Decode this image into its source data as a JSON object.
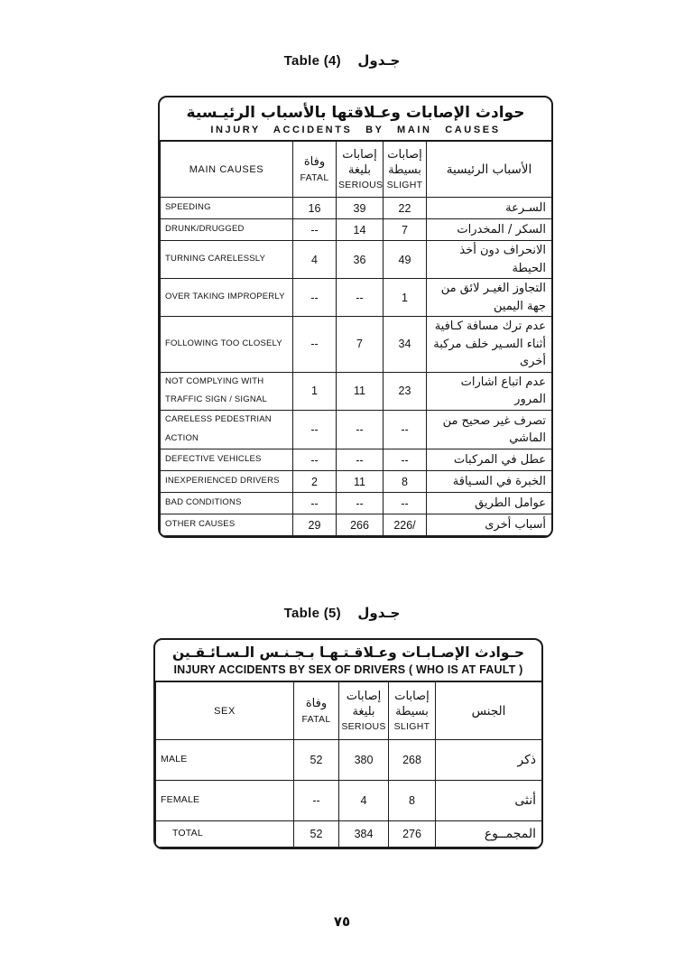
{
  "captions": {
    "table4_en": "Table (4)",
    "table4_ar": "جـدول",
    "table5_en": "Table (5)",
    "table5_ar": "جـدول"
  },
  "table4": {
    "title_ar": "حوادث الإصابات وعـلاقتها بالأسباب الرئيـسية",
    "title_en": "INJURY ACCIDENTS BY MAIN CAUSES",
    "columns": [
      {
        "en": "MAIN CAUSES"
      },
      {
        "ar": "وفاة",
        "en": "FATAL"
      },
      {
        "ar1": "إصابات",
        "ar2": "بليغة",
        "en": "SERIOUS"
      },
      {
        "ar1": "إصابات",
        "ar2": "بسيطة",
        "en": "SLIGHT"
      },
      {
        "ar": "الأسباب الرئيسية"
      }
    ],
    "rows": [
      {
        "cause_en": "SPEEDING",
        "fatal": "16",
        "serious": "39",
        "slight": "22",
        "cause_ar": "السـرعة"
      },
      {
        "cause_en": "DRUNK/DRUGGED",
        "fatal": "--",
        "serious": "14",
        "slight": "7",
        "cause_ar": "السكر / المخدرات"
      },
      {
        "cause_en": "TURNING CARELESSLY",
        "fatal": "4",
        "serious": "36",
        "slight": "49",
        "cause_ar": "الانحراف دون أخذ الحيطة"
      },
      {
        "cause_en": "OVER TAKING IMPROPERLY",
        "fatal": "--",
        "serious": "--",
        "slight": "1",
        "cause_ar": "التجاوز الغيـر لائق من جهة اليمين"
      },
      {
        "cause_en": "FOLLOWING TOO CLOSELY",
        "fatal": "--",
        "serious": "7",
        "slight": "34",
        "cause_ar": "عدم ترك مسافة كـافية أثناء السـير خلف مركبة أخرى"
      },
      {
        "cause_en": "NOT COMPLYING WITH TRAFFIC SIGN / SIGNAL",
        "fatal": "1",
        "serious": "11",
        "slight": "23",
        "cause_ar": "عدم اتباع اشارات المرور"
      },
      {
        "cause_en": "CARELESS PEDESTRIAN ACTION",
        "fatal": "--",
        "serious": "--",
        "slight": "--",
        "cause_ar": "تصرف غير صحيح من الماشي"
      },
      {
        "cause_en": "DEFECTIVE VEHICLES",
        "fatal": "--",
        "serious": "--",
        "slight": "--",
        "cause_ar": "عطل في المركبات"
      },
      {
        "cause_en": "INEXPERIENCED DRIVERS",
        "fatal": "2",
        "serious": "11",
        "slight": "8",
        "cause_ar": "الخبرة في السـياقة"
      },
      {
        "cause_en": "BAD CONDITIONS",
        "fatal": "--",
        "serious": "--",
        "slight": "--",
        "cause_ar": "عوامل الطريق"
      },
      {
        "cause_en": "OTHER CAUSES",
        "fatal": "29",
        "serious": "266",
        "slight": "226/",
        "cause_ar": "أسباب أخرى"
      }
    ]
  },
  "table5": {
    "title_ar": "حـوادث الإصـابـات وعـلاقـتـهـا بـجـنـس الـسـائـقـين",
    "title_en": "INJURY ACCIDENTS BY SEX OF DRIVERS ( WHO IS AT FAULT )",
    "columns": [
      {
        "en": "SEX"
      },
      {
        "ar": "وفاة",
        "en": "FATAL"
      },
      {
        "ar1": "إصابات",
        "ar2": "بليغة",
        "en": "SERIOUS"
      },
      {
        "ar1": "إصابات",
        "ar2": "بسيطة",
        "en": "SLIGHT"
      },
      {
        "ar": "الجنس"
      }
    ],
    "rows": [
      {
        "sex_en": "MALE",
        "fatal": "52",
        "serious": "380",
        "slight": "268",
        "sex_ar": "ذكر"
      },
      {
        "sex_en": "FEMALE",
        "fatal": "--",
        "serious": "4",
        "slight": "8",
        "sex_ar": "أنثى"
      },
      {
        "sex_en": "TOTAL",
        "fatal": "52",
        "serious": "384",
        "slight": "276",
        "sex_ar": "المجمــوع"
      }
    ]
  },
  "page_number": "٧٥"
}
